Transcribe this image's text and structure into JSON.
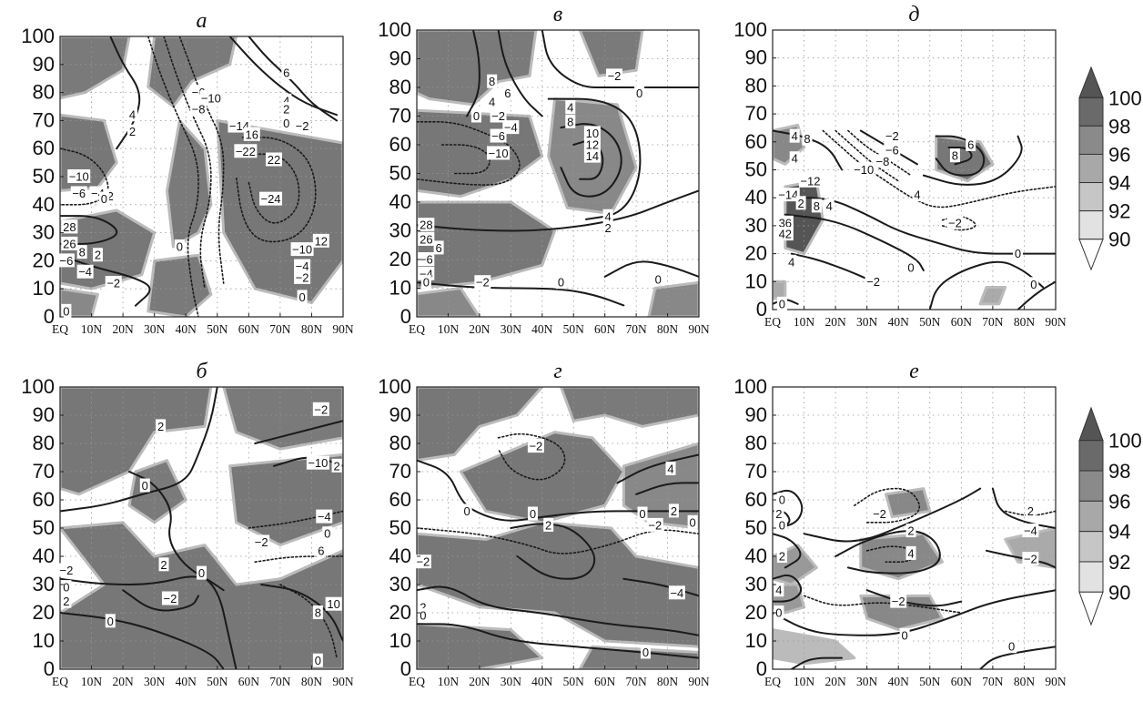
{
  "chart_data": [
    {
      "type": "contour",
      "title": "а",
      "x_ticks": [
        "EQ",
        "10N",
        "20N",
        "30N",
        "40N",
        "50N",
        "60N",
        "70N",
        "80N",
        "90N"
      ],
      "y_ticks": [
        "0",
        "10",
        "20",
        "30",
        "40",
        "50",
        "60",
        "70",
        "80",
        "90",
        "100"
      ],
      "xlim": [
        0,
        90
      ],
      "ylim": [
        0,
        100
      ],
      "shading_levels": [
        90,
        92,
        94,
        96,
        98,
        100
      ],
      "contour_labels": [
        {
          "text": "6",
          "x": 72,
          "y": 87
        },
        {
          "text": "4",
          "x": 72,
          "y": 77
        },
        {
          "text": "2",
          "x": 72,
          "y": 74
        },
        {
          "text": "0",
          "x": 72,
          "y": 69
        },
        {
          "text": "−2",
          "x": 77,
          "y": 68
        },
        {
          "text": "4",
          "x": 23,
          "y": 72
        },
        {
          "text": "2",
          "x": 23,
          "y": 66
        },
        {
          "text": "−6",
          "x": 44,
          "y": 80
        },
        {
          "text": "−8",
          "x": 44,
          "y": 74
        },
        {
          "text": "−10",
          "x": 48,
          "y": 78
        },
        {
          "text": "−14",
          "x": 57,
          "y": 68
        },
        {
          "text": "16",
          "x": 61,
          "y": 65
        },
        {
          "text": "−22",
          "x": 59,
          "y": 59
        },
        {
          "text": "22",
          "x": 68,
          "y": 56
        },
        {
          "text": "−24",
          "x": 67,
          "y": 42
        },
        {
          "text": "−10",
          "x": 6,
          "y": 50
        },
        {
          "text": "−6",
          "x": 6,
          "y": 44
        },
        {
          "text": "−4",
          "x": 12,
          "y": 44
        },
        {
          "text": "2",
          "x": 16,
          "y": 43
        },
        {
          "text": "0",
          "x": 14,
          "y": 42
        },
        {
          "text": "28",
          "x": 3,
          "y": 32
        },
        {
          "text": "26",
          "x": 3,
          "y": 26
        },
        {
          "text": "8",
          "x": 7,
          "y": 23
        },
        {
          "text": "2",
          "x": 12,
          "y": 22
        },
        {
          "text": "−6",
          "x": 2,
          "y": 20
        },
        {
          "text": "−4",
          "x": 8,
          "y": 16
        },
        {
          "text": "−2",
          "x": 17,
          "y": 12
        },
        {
          "text": "0",
          "x": 2,
          "y": 2
        },
        {
          "text": "0",
          "x": 38,
          "y": 25
        },
        {
          "text": "12",
          "x": 83,
          "y": 27
        },
        {
          "text": "−10",
          "x": 77,
          "y": 24
        },
        {
          "text": "−4",
          "x": 77,
          "y": 18
        },
        {
          "text": "−2",
          "x": 77,
          "y": 14
        },
        {
          "text": "0",
          "x": 77,
          "y": 7
        }
      ]
    },
    {
      "type": "contour",
      "title": "б",
      "x_ticks": [
        "EQ",
        "10N",
        "20N",
        "30N",
        "40N",
        "50N",
        "60N",
        "70N",
        "80N",
        "90N"
      ],
      "y_ticks": [
        "0",
        "10",
        "20",
        "30",
        "40",
        "50",
        "60",
        "70",
        "80",
        "90",
        "100"
      ],
      "xlim": [
        0,
        90
      ],
      "ylim": [
        0,
        100
      ],
      "shading_levels": [
        90,
        92,
        94,
        96,
        98,
        100
      ],
      "contour_labels": [
        {
          "text": "2",
          "x": 32,
          "y": 86
        },
        {
          "text": "0",
          "x": 27,
          "y": 65
        },
        {
          "text": "−2",
          "x": 83,
          "y": 92
        },
        {
          "text": "−10",
          "x": 82,
          "y": 73
        },
        {
          "text": "2",
          "x": 88,
          "y": 72
        },
        {
          "text": "−4",
          "x": 84,
          "y": 54
        },
        {
          "text": "0",
          "x": 85,
          "y": 48
        },
        {
          "text": "−2",
          "x": 64,
          "y": 45
        },
        {
          "text": "6",
          "x": 83,
          "y": 42
        },
        {
          "text": "2",
          "x": 33,
          "y": 37
        },
        {
          "text": "0",
          "x": 45,
          "y": 34
        },
        {
          "text": "−2",
          "x": 35,
          "y": 25
        },
        {
          "text": "−2",
          "x": 2,
          "y": 35
        },
        {
          "text": "0",
          "x": 2,
          "y": 29
        },
        {
          "text": "2",
          "x": 2,
          "y": 24
        },
        {
          "text": "0",
          "x": 16,
          "y": 17
        },
        {
          "text": "10",
          "x": 87,
          "y": 23
        },
        {
          "text": "8",
          "x": 82,
          "y": 20
        },
        {
          "text": "0",
          "x": 82,
          "y": 3
        }
      ]
    },
    {
      "type": "contour",
      "title": "в",
      "x_ticks": [
        "EQ",
        "10N",
        "20N",
        "30N",
        "40N",
        "50N",
        "60N",
        "70N",
        "80N",
        "90N"
      ],
      "y_ticks": [
        "0",
        "10",
        "20",
        "30",
        "40",
        "50",
        "60",
        "70",
        "80",
        "90",
        "100"
      ],
      "xlim": [
        0,
        90
      ],
      "ylim": [
        0,
        100
      ],
      "shading_levels": [
        90,
        92,
        94,
        96,
        98,
        100
      ],
      "contour_labels": [
        {
          "text": "−2",
          "x": 63,
          "y": 84
        },
        {
          "text": "0",
          "x": 71,
          "y": 78
        },
        {
          "text": "8",
          "x": 24,
          "y": 82
        },
        {
          "text": "6",
          "x": 29,
          "y": 78
        },
        {
          "text": "4",
          "x": 24,
          "y": 75
        },
        {
          "text": "0",
          "x": 19,
          "y": 70
        },
        {
          "text": "−2",
          "x": 26,
          "y": 70
        },
        {
          "text": "−4",
          "x": 30,
          "y": 66
        },
        {
          "text": "−6",
          "x": 26,
          "y": 63
        },
        {
          "text": "−10",
          "x": 26,
          "y": 57
        },
        {
          "text": "4",
          "x": 49,
          "y": 73
        },
        {
          "text": "8",
          "x": 49,
          "y": 68
        },
        {
          "text": "10",
          "x": 56,
          "y": 64
        },
        {
          "text": "12",
          "x": 56,
          "y": 60
        },
        {
          "text": "14",
          "x": 56,
          "y": 56
        },
        {
          "text": "4",
          "x": 61,
          "y": 35
        },
        {
          "text": "2",
          "x": 61,
          "y": 31
        },
        {
          "text": "28",
          "x": 3,
          "y": 32
        },
        {
          "text": "26",
          "x": 3,
          "y": 27
        },
        {
          "text": "6",
          "x": 7,
          "y": 24
        },
        {
          "text": "−6",
          "x": 3,
          "y": 20
        },
        {
          "text": "−4",
          "x": 3,
          "y": 15
        },
        {
          "text": "0",
          "x": 3,
          "y": 12
        },
        {
          "text": "−2",
          "x": 21,
          "y": 12
        },
        {
          "text": "0",
          "x": 46,
          "y": 12
        },
        {
          "text": "0",
          "x": 77,
          "y": 13
        }
      ]
    },
    {
      "type": "contour",
      "title": "г",
      "x_ticks": [
        "EQ",
        "10N",
        "20N",
        "30N",
        "40N",
        "50N",
        "60N",
        "70N",
        "80N",
        "90N"
      ],
      "y_ticks": [
        "0",
        "10",
        "20",
        "30",
        "40",
        "50",
        "60",
        "70",
        "80",
        "90",
        "100"
      ],
      "xlim": [
        0,
        90
      ],
      "ylim": [
        0,
        100
      ],
      "shading_levels": [
        90,
        92,
        94,
        96,
        98,
        100
      ],
      "contour_labels": [
        {
          "text": "−2",
          "x": 38,
          "y": 79
        },
        {
          "text": "4",
          "x": 81,
          "y": 71
        },
        {
          "text": "0",
          "x": 16,
          "y": 56
        },
        {
          "text": "0",
          "x": 37,
          "y": 55
        },
        {
          "text": "2",
          "x": 42,
          "y": 51
        },
        {
          "text": "0",
          "x": 72,
          "y": 55
        },
        {
          "text": "−2",
          "x": 76,
          "y": 51
        },
        {
          "text": "2",
          "x": 82,
          "y": 56
        },
        {
          "text": "0",
          "x": 88,
          "y": 52
        },
        {
          "text": "−2",
          "x": 2,
          "y": 38
        },
        {
          "text": "−4",
          "x": 83,
          "y": 27
        },
        {
          "text": "2",
          "x": 2,
          "y": 22
        },
        {
          "text": "0",
          "x": 2,
          "y": 19
        },
        {
          "text": "0",
          "x": 73,
          "y": 6
        }
      ]
    },
    {
      "type": "contour",
      "title": "д",
      "x_ticks": [
        "EQ",
        "10N",
        "20N",
        "30N",
        "40N",
        "50N",
        "60N",
        "70N",
        "80N",
        "90N"
      ],
      "y_ticks": [
        "0",
        "10",
        "20",
        "30",
        "40",
        "50",
        "60",
        "70",
        "80",
        "90",
        "100"
      ],
      "xlim": [
        0,
        90
      ],
      "ylim": [
        0,
        100
      ],
      "shading_levels": [
        90,
        92,
        94,
        96,
        98,
        100
      ],
      "colorbar_ticks": [
        "100",
        "98",
        "96",
        "94",
        "92",
        "90"
      ],
      "contour_labels": [
        {
          "text": "4",
          "x": 7,
          "y": 62
        },
        {
          "text": "8",
          "x": 11,
          "y": 61
        },
        {
          "text": "−2",
          "x": 38,
          "y": 62
        },
        {
          "text": "−6",
          "x": 38,
          "y": 57
        },
        {
          "text": "−8",
          "x": 35,
          "y": 53
        },
        {
          "text": "−10",
          "x": 29,
          "y": 50
        },
        {
          "text": "4",
          "x": 7,
          "y": 54
        },
        {
          "text": "−12",
          "x": 12,
          "y": 46
        },
        {
          "text": "−14",
          "x": 5,
          "y": 41
        },
        {
          "text": "2",
          "x": 9,
          "y": 38
        },
        {
          "text": "8",
          "x": 14,
          "y": 37
        },
        {
          "text": "4",
          "x": 18,
          "y": 37
        },
        {
          "text": "36",
          "x": 4,
          "y": 31
        },
        {
          "text": "42",
          "x": 4,
          "y": 27
        },
        {
          "text": "4",
          "x": 6,
          "y": 17
        },
        {
          "text": "8",
          "x": 58,
          "y": 55
        },
        {
          "text": "6",
          "x": 63,
          "y": 59
        },
        {
          "text": "4",
          "x": 46,
          "y": 41
        },
        {
          "text": "−2",
          "x": 58,
          "y": 31
        },
        {
          "text": "0",
          "x": 44,
          "y": 15
        },
        {
          "text": "−2",
          "x": 32,
          "y": 10
        },
        {
          "text": "0",
          "x": 78,
          "y": 20
        },
        {
          "text": "0",
          "x": 83,
          "y": 9
        },
        {
          "text": "0",
          "x": 3,
          "y": 2
        }
      ]
    },
    {
      "type": "contour",
      "title": "е",
      "x_ticks": [
        "EQ",
        "10N",
        "20N",
        "30N",
        "40N",
        "50N",
        "60N",
        "70N",
        "80N",
        "90N"
      ],
      "y_ticks": [
        "0",
        "10",
        "20",
        "30",
        "40",
        "50",
        "60",
        "70",
        "80",
        "90",
        "100"
      ],
      "xlim": [
        0,
        90
      ],
      "ylim": [
        0,
        100
      ],
      "shading_levels": [
        90,
        92,
        94,
        96,
        98,
        100
      ],
      "colorbar_ticks": [
        "100",
        "98",
        "96",
        "94",
        "92",
        "90"
      ],
      "contour_labels": [
        {
          "text": "0",
          "x": 3,
          "y": 60
        },
        {
          "text": "2",
          "x": 2,
          "y": 55
        },
        {
          "text": "0",
          "x": 3,
          "y": 51
        },
        {
          "text": "2",
          "x": 3,
          "y": 40
        },
        {
          "text": "−2",
          "x": 34,
          "y": 55
        },
        {
          "text": "2",
          "x": 44,
          "y": 49
        },
        {
          "text": "4",
          "x": 44,
          "y": 41
        },
        {
          "text": "2",
          "x": 82,
          "y": 56
        },
        {
          "text": "−4",
          "x": 82,
          "y": 49
        },
        {
          "text": "−2",
          "x": 82,
          "y": 39
        },
        {
          "text": "4",
          "x": 2,
          "y": 28
        },
        {
          "text": "0",
          "x": 2,
          "y": 20
        },
        {
          "text": "−2",
          "x": 40,
          "y": 24
        },
        {
          "text": "0",
          "x": 42,
          "y": 12
        },
        {
          "text": "0",
          "x": 76,
          "y": 8
        }
      ]
    }
  ]
}
